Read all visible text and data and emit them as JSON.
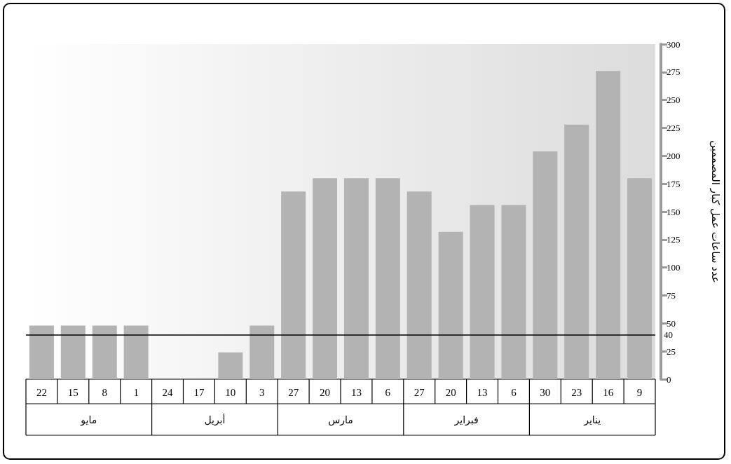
{
  "chart_data": {
    "type": "bar",
    "ylabel": "عدد ساعات عمل كبار المصممين",
    "categories": [
      "22",
      "15",
      "8",
      "1",
      "24",
      "17",
      "10",
      "3",
      "27",
      "20",
      "13",
      "6",
      "27",
      "20",
      "13",
      "6",
      "30",
      "23",
      "16",
      "9"
    ],
    "values": [
      48,
      48,
      48,
      48,
      0,
      0,
      24,
      48,
      168,
      180,
      180,
      180,
      168,
      132,
      156,
      156,
      204,
      228,
      276,
      180
    ],
    "color": "#b3b3b3",
    "ylim": [
      0,
      300
    ],
    "yticks": [
      0,
      25,
      50,
      75,
      100,
      125,
      150,
      175,
      200,
      225,
      250,
      275,
      300
    ],
    "ref_lines": [
      {
        "axis": "y",
        "value": 40,
        "label": "40",
        "color": "#000000"
      }
    ],
    "annotations": [
      "مايو",
      "أبريل",
      "مارس",
      "فبراير",
      "يناير"
    ]
  }
}
